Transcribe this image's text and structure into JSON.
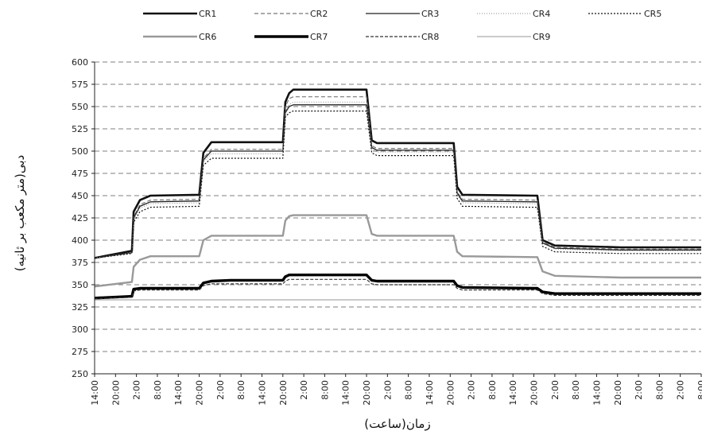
{
  "chart_data": {
    "type": "line",
    "xlabel": "زمان(ساعت)",
    "ylabel": "دبی(متر مکعب بر ثانیه)",
    "ylim": [
      250,
      600
    ],
    "yticks": [
      250,
      275,
      300,
      325,
      350,
      375,
      400,
      425,
      450,
      475,
      500,
      525,
      550,
      575,
      600
    ],
    "xlim": [
      14,
      188
    ],
    "x_ticks": [
      {
        "x": 14,
        "label": "14:00"
      },
      {
        "x": 20,
        "label": "20:00"
      },
      {
        "x": 26,
        "label": "2:00"
      },
      {
        "x": 32,
        "label": "8:00"
      },
      {
        "x": 38,
        "label": "14:00"
      },
      {
        "x": 44,
        "label": "20:00"
      },
      {
        "x": 50,
        "label": "2:00"
      },
      {
        "x": 56,
        "label": "8:00"
      },
      {
        "x": 62,
        "label": "14:00"
      },
      {
        "x": 68,
        "label": "20:00"
      },
      {
        "x": 74,
        "label": "2:00"
      },
      {
        "x": 80,
        "label": "8:00"
      },
      {
        "x": 86,
        "label": "14:00"
      },
      {
        "x": 92,
        "label": "20:00"
      },
      {
        "x": 98,
        "label": "2:00"
      },
      {
        "x": 104,
        "label": "8:00"
      },
      {
        "x": 110,
        "label": "14:00"
      },
      {
        "x": 116,
        "label": "20:00"
      },
      {
        "x": 122,
        "label": "2:00"
      },
      {
        "x": 128,
        "label": "8:00"
      },
      {
        "x": 134,
        "label": "14:00"
      },
      {
        "x": 140,
        "label": "20:00"
      },
      {
        "x": 146,
        "label": "2:00"
      },
      {
        "x": 152,
        "label": "8:00"
      },
      {
        "x": 158,
        "label": "14:00"
      },
      {
        "x": 164,
        "label": "20:00"
      },
      {
        "x": 170,
        "label": "2:00"
      },
      {
        "x": 176,
        "label": "8:00"
      },
      {
        "x": 182,
        "label": "2:00"
      },
      {
        "x": 188,
        "label": "8:00"
      }
    ],
    "grid": true,
    "legend_position": "top",
    "x": [
      14,
      24.7,
      25.2,
      27,
      30,
      44,
      45.2,
      47.5,
      53,
      68,
      68.7,
      69.8,
      71,
      76,
      77.9,
      80,
      92,
      93.5,
      95,
      117,
      118,
      119.5,
      140,
      141,
      142.5,
      146,
      165,
      166,
      167,
      188
    ],
    "series": [
      {
        "name": "CR1",
        "color": "#111111",
        "width": 2.6,
        "dash": "",
        "values": [
          380,
          388,
          432,
          445,
          450,
          451,
          498,
          510,
          510,
          510,
          555,
          565,
          569,
          569,
          569,
          569,
          569,
          512,
          509,
          509,
          460,
          451,
          450,
          450,
          400,
          394,
          392,
          392,
          392,
          392
        ]
      },
      {
        "name": "CR2",
        "color": "#777777",
        "width": 1.2,
        "dash": "5 3",
        "values": [
          380,
          386,
          426,
          440,
          445,
          446,
          492,
          502,
          502,
          502,
          550,
          559,
          561,
          561,
          561,
          561,
          561,
          506,
          503,
          503,
          454,
          446,
          445,
          445,
          398,
          392,
          390,
          390,
          390,
          390
        ]
      },
      {
        "name": "CR3",
        "color": "#222222",
        "width": 1.3,
        "dash": "",
        "values": [
          380,
          386,
          425,
          438,
          443,
          444,
          490,
          500,
          500,
          500,
          543,
          550,
          552,
          552,
          552,
          552,
          552,
          504,
          501,
          501,
          453,
          444,
          443,
          443,
          397,
          391,
          389,
          389,
          389,
          389
        ]
      },
      {
        "name": "CR4",
        "color": "#888888",
        "width": 1.0,
        "dash": "1 2",
        "values": [
          380,
          386,
          423,
          436,
          441,
          442,
          488,
          497,
          497,
          497,
          545,
          552,
          555,
          555,
          555,
          555,
          555,
          502,
          499,
          499,
          451,
          442,
          441,
          441,
          396,
          390,
          388,
          388,
          388,
          388
        ]
      },
      {
        "name": "CR5",
        "color": "#111111",
        "width": 1.2,
        "dash": "2 2",
        "values": [
          380,
          385,
          420,
          432,
          437,
          438,
          484,
          492,
          492,
          492,
          538,
          543,
          545,
          545,
          545,
          545,
          545,
          498,
          495,
          495,
          447,
          438,
          437,
          437,
          393,
          387,
          385,
          385,
          385,
          385
        ]
      },
      {
        "name": "CR6",
        "color": "#999999",
        "width": 2.4,
        "dash": "",
        "values": [
          348,
          353,
          370,
          378,
          382,
          382,
          400,
          405,
          405,
          405,
          422,
          427,
          428,
          428,
          428,
          428,
          428,
          407,
          405,
          405,
          387,
          382,
          381,
          381,
          365,
          360,
          358,
          358,
          358,
          358
        ]
      },
      {
        "name": "CR7",
        "color": "#000000",
        "width": 3.4,
        "dash": "",
        "values": [
          335,
          337,
          345,
          346,
          346,
          346,
          352,
          354,
          355,
          355,
          359,
          361,
          361,
          361,
          361,
          361,
          361,
          355,
          354,
          354,
          349,
          347,
          346,
          346,
          342,
          340,
          340,
          340,
          340,
          340
        ]
      },
      {
        "name": "CR8",
        "color": "#333333",
        "width": 1.2,
        "dash": "4 2",
        "values": [
          334,
          336,
          343,
          344,
          344,
          344,
          349,
          351,
          351,
          351,
          354,
          356,
          356,
          356,
          356,
          356,
          356,
          351,
          350,
          350,
          346,
          344,
          344,
          344,
          340,
          338,
          338,
          338,
          338,
          338
        ]
      },
      {
        "name": "CR9",
        "color": "#aaaaaa",
        "width": 1.3,
        "dash": "",
        "values": [
          333,
          333,
          333,
          333,
          333,
          333,
          333,
          333,
          333,
          333,
          333,
          333,
          333,
          333,
          333,
          333,
          333,
          333,
          333,
          333,
          333,
          333,
          333,
          333,
          333,
          333,
          333,
          333,
          333,
          333
        ]
      }
    ]
  }
}
